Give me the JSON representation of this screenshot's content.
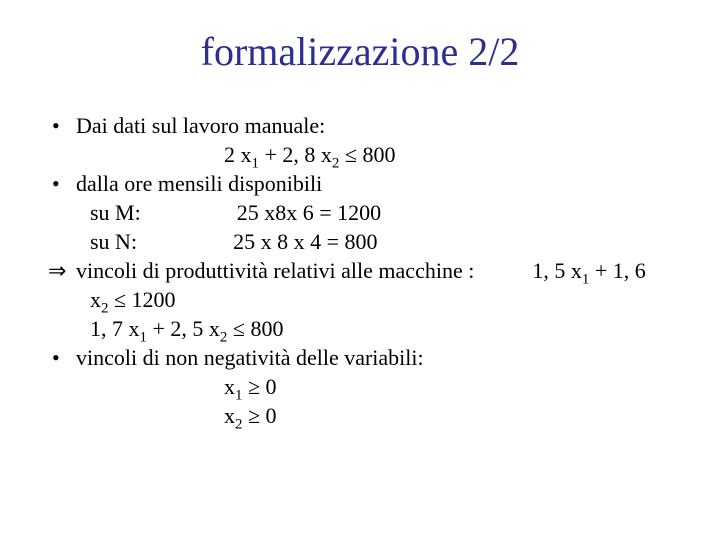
{
  "title_color": "#2b2f8f",
  "body_color": "#000000",
  "title": "formalizzazione 2/2",
  "bullets": {
    "b1": "Dai dati sul lavoro manuale:",
    "b1_line": "2 x₁ + 2, 8 x₂ ≤ 800",
    "b2": "dalla ore mensili disponibili",
    "b2_m_label": "su  M:",
    "b2_m_expr": "25 x8x 6 = 1200",
    "b2_n_label": "su N:",
    "b2_n_expr": "25 x 8 x 4 = 800",
    "b3_lead": "vincoli di produttività relativi alle macchine :",
    "b3_tail": "1, 5 x₁ + 1, 6",
    "b3_l2": "x₂ ≤ 1200",
    "b3_l3": "1, 7 x₁ + 2, 5 x₂ ≤ 800",
    "b4": "vincoli di non negatività delle variabili:",
    "b4_l1": "x₁ ≥ 0",
    "b4_l2": "x₂ ≥ 0"
  }
}
